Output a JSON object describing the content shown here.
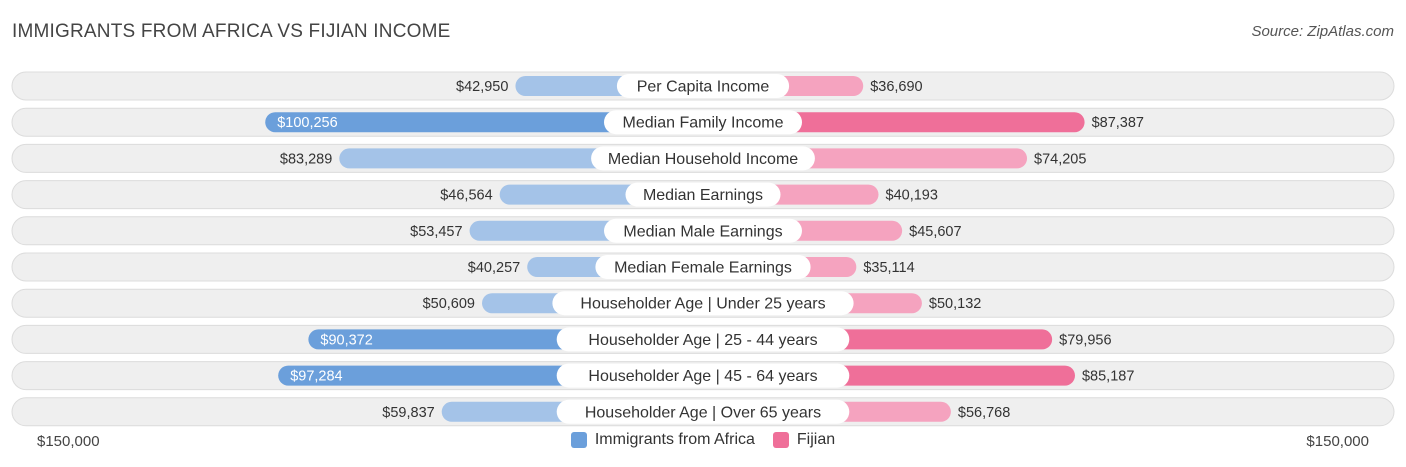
{
  "header": {
    "title": "IMMIGRANTS FROM AFRICA VS FIJIAN INCOME",
    "source": "Source: ZipAtlas.com"
  },
  "colors": {
    "left_light": "#a4c3e8",
    "left_strong": "#6b9fdb",
    "right_light": "#f5a3bf",
    "right_strong": "#ef6f99",
    "row_bg": "#efefef",
    "row_border": "#dcdcdc"
  },
  "chart_data": {
    "type": "bar",
    "orientation": "diverging-horizontal",
    "title": "IMMIGRANTS FROM AFRICA VS FIJIAN INCOME",
    "xlim": [
      -150000,
      150000
    ],
    "axis_labels": {
      "left": "$150,000",
      "right": "$150,000"
    },
    "categories": [
      "Per Capita Income",
      "Median Family Income",
      "Median Household Income",
      "Median Earnings",
      "Median Male Earnings",
      "Median Female Earnings",
      "Householder Age | Under 25 years",
      "Householder Age | 25 - 44 years",
      "Householder Age | 45 - 64 years",
      "Householder Age | Over 65 years"
    ],
    "series": [
      {
        "name": "Immigrants from Africa",
        "values": [
          42950,
          100256,
          83289,
          46564,
          53457,
          40257,
          50609,
          90372,
          97284,
          59837
        ],
        "labels": [
          "$42,950",
          "$100,256",
          "$83,289",
          "$46,564",
          "$53,457",
          "$40,257",
          "$50,609",
          "$90,372",
          "$97,284",
          "$59,837"
        ]
      },
      {
        "name": "Fijian",
        "values": [
          36690,
          87387,
          74205,
          40193,
          45607,
          35114,
          50132,
          79956,
          85187,
          56768
        ],
        "labels": [
          "$36,690",
          "$87,387",
          "$74,205",
          "$40,193",
          "$45,607",
          "$35,114",
          "$50,132",
          "$79,956",
          "$85,187",
          "$56,768"
        ]
      }
    ],
    "legend": [
      "Immigrants from Africa",
      "Fijian"
    ],
    "legend_position": "bottom-center"
  }
}
